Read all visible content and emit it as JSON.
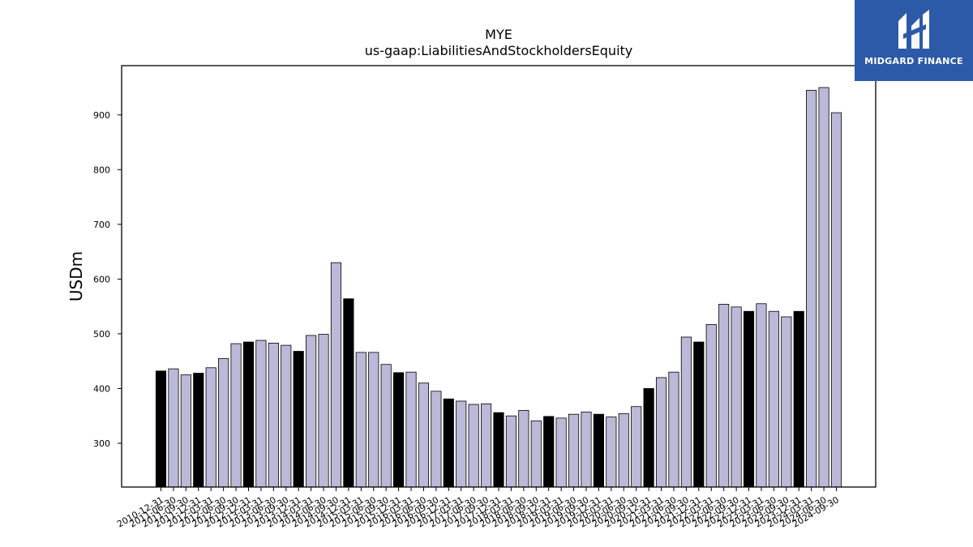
{
  "chart_data": {
    "type": "bar",
    "title": "MYE",
    "subtitle": "us-gaap:LiabilitiesAndStockholdersEquity",
    "xlabel": "",
    "ylabel": "USDm",
    "ylim": [
      220,
      990
    ],
    "yticks": [
      300,
      400,
      500,
      600,
      700,
      800,
      900
    ],
    "grid": false,
    "colors": {
      "fiscal_year_end": "#000000",
      "quarter": "#bcb8d8",
      "edge": "#000000"
    },
    "categories": [
      "2010-12-31",
      "2011-06-30",
      "2011-09-30",
      "2011-12-31",
      "2012-03-31",
      "2012-06-30",
      "2012-09-30",
      "2012-12-31",
      "2013-03-31",
      "2013-06-30",
      "2013-09-30",
      "2013-12-31",
      "2014-03-31",
      "2014-06-30",
      "2014-09-30",
      "2014-12-31",
      "2015-03-31",
      "2015-06-30",
      "2015-09-30",
      "2015-12-31",
      "2016-03-31",
      "2016-06-30",
      "2016-09-30",
      "2016-12-31",
      "2017-03-31",
      "2017-06-30",
      "2017-09-30",
      "2017-12-31",
      "2018-03-31",
      "2018-06-30",
      "2018-09-30",
      "2018-12-31",
      "2019-03-31",
      "2019-06-30",
      "2019-09-30",
      "2019-12-31",
      "2020-03-31",
      "2020-06-30",
      "2020-09-30",
      "2020-12-31",
      "2021-03-31",
      "2021-06-30",
      "2021-09-30",
      "2021-12-31",
      "2022-03-31",
      "2022-06-30",
      "2022-09-30",
      "2022-12-31",
      "2023-03-31",
      "2023-06-30",
      "2023-09-30",
      "2023-12-31",
      "2024-03-31",
      "2024-06-30",
      "2024-09-30"
    ],
    "values": [
      432,
      436,
      425,
      428,
      438,
      455,
      482,
      485,
      488,
      483,
      479,
      468,
      497,
      499,
      630,
      564,
      466,
      466,
      444,
      429,
      430,
      410,
      395,
      381,
      377,
      371,
      372,
      356,
      350,
      360,
      341,
      349,
      346,
      353,
      357,
      353,
      348,
      354,
      367,
      400,
      420,
      430,
      494,
      485,
      517,
      554,
      549,
      541,
      555,
      541,
      531,
      541,
      945,
      950,
      904
    ],
    "highlight": [
      true,
      false,
      false,
      true,
      false,
      false,
      false,
      true,
      false,
      false,
      false,
      true,
      false,
      false,
      false,
      true,
      false,
      false,
      false,
      true,
      false,
      false,
      false,
      true,
      false,
      false,
      false,
      true,
      false,
      false,
      false,
      true,
      false,
      false,
      false,
      true,
      false,
      false,
      false,
      true,
      false,
      false,
      false,
      true,
      false,
      false,
      false,
      true,
      false,
      false,
      false,
      true,
      false,
      false,
      false
    ]
  },
  "logo": {
    "text": "MIDGARD FINANCE",
    "icon": "midgard-logo-icon",
    "color": "#2c5aa8"
  }
}
